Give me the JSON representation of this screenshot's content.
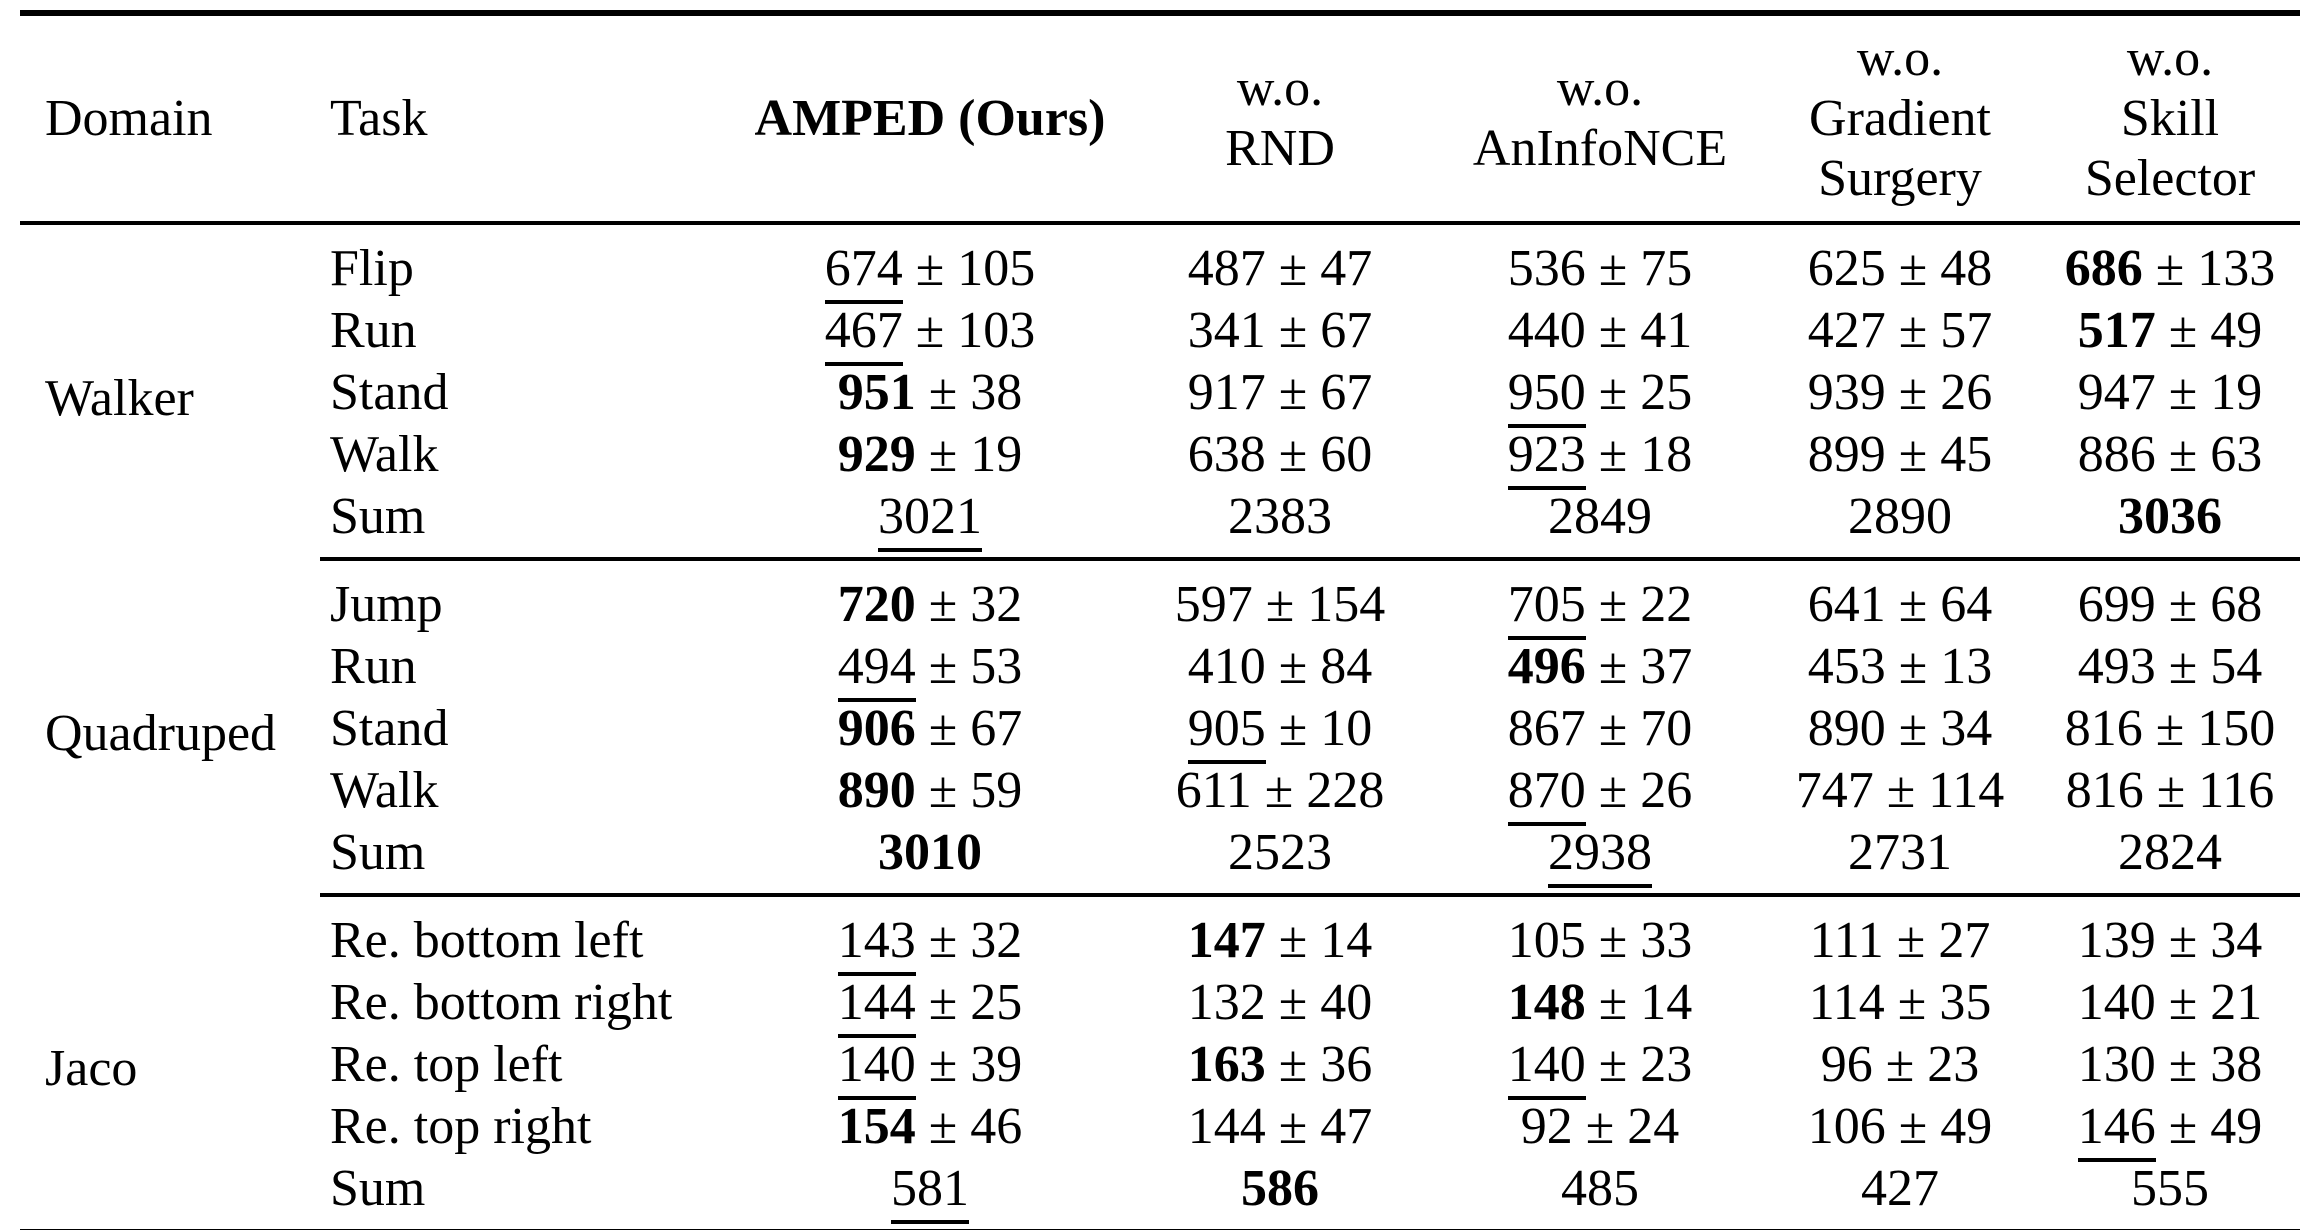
{
  "pm_sign": "±",
  "header": {
    "domain": "Domain",
    "task": "Task",
    "amped": "AMPED (Ours)",
    "wo_rnd": [
      "w.o.",
      "RND"
    ],
    "wo_aninfonce": [
      "w.o.",
      "AnInfoNCE"
    ],
    "wo_gradient": [
      "w.o.",
      "Gradient",
      "Surgery"
    ],
    "wo_skill": [
      "w.o.",
      "Skill",
      "Selector"
    ]
  },
  "groups": [
    {
      "domain": "Walker",
      "rows": [
        {
          "task": "Flip",
          "cells": [
            {
              "mean": "674",
              "std": "105",
              "emph": "underline"
            },
            {
              "mean": "487",
              "std": "47",
              "emph": "none"
            },
            {
              "mean": "536",
              "std": "75",
              "emph": "none"
            },
            {
              "mean": "625",
              "std": "48",
              "emph": "none"
            },
            {
              "mean": "686",
              "std": "133",
              "emph": "bold"
            }
          ]
        },
        {
          "task": "Run",
          "cells": [
            {
              "mean": "467",
              "std": "103",
              "emph": "underline"
            },
            {
              "mean": "341",
              "std": "67",
              "emph": "none"
            },
            {
              "mean": "440",
              "std": "41",
              "emph": "none"
            },
            {
              "mean": "427",
              "std": "57",
              "emph": "none"
            },
            {
              "mean": "517",
              "std": "49",
              "emph": "bold"
            }
          ]
        },
        {
          "task": "Stand",
          "cells": [
            {
              "mean": "951",
              "std": "38",
              "emph": "bold"
            },
            {
              "mean": "917",
              "std": "67",
              "emph": "none"
            },
            {
              "mean": "950",
              "std": "25",
              "emph": "underline"
            },
            {
              "mean": "939",
              "std": "26",
              "emph": "none"
            },
            {
              "mean": "947",
              "std": "19",
              "emph": "none"
            }
          ]
        },
        {
          "task": "Walk",
          "cells": [
            {
              "mean": "929",
              "std": "19",
              "emph": "bold"
            },
            {
              "mean": "638",
              "std": "60",
              "emph": "none"
            },
            {
              "mean": "923",
              "std": "18",
              "emph": "underline"
            },
            {
              "mean": "899",
              "std": "45",
              "emph": "none"
            },
            {
              "mean": "886",
              "std": "63",
              "emph": "none"
            }
          ]
        },
        {
          "task": "Sum",
          "cells": [
            {
              "mean": "3021",
              "emph": "underline"
            },
            {
              "mean": "2383",
              "emph": "none"
            },
            {
              "mean": "2849",
              "emph": "none"
            },
            {
              "mean": "2890",
              "emph": "none"
            },
            {
              "mean": "3036",
              "emph": "bold"
            }
          ]
        }
      ]
    },
    {
      "domain": "Quadruped",
      "rows": [
        {
          "task": "Jump",
          "cells": [
            {
              "mean": "720",
              "std": "32",
              "emph": "bold"
            },
            {
              "mean": "597",
              "std": "154",
              "emph": "none"
            },
            {
              "mean": "705",
              "std": "22",
              "emph": "underline"
            },
            {
              "mean": "641",
              "std": "64",
              "emph": "none"
            },
            {
              "mean": "699",
              "std": "68",
              "emph": "none"
            }
          ]
        },
        {
          "task": "Run",
          "cells": [
            {
              "mean": "494",
              "std": "53",
              "emph": "underline"
            },
            {
              "mean": "410",
              "std": "84",
              "emph": "none"
            },
            {
              "mean": "496",
              "std": "37",
              "emph": "bold"
            },
            {
              "mean": "453",
              "std": "13",
              "emph": "none"
            },
            {
              "mean": "493",
              "std": "54",
              "emph": "none"
            }
          ]
        },
        {
          "task": "Stand",
          "cells": [
            {
              "mean": "906",
              "std": "67",
              "emph": "bold"
            },
            {
              "mean": "905",
              "std": "10",
              "emph": "underline"
            },
            {
              "mean": "867",
              "std": "70",
              "emph": "none"
            },
            {
              "mean": "890",
              "std": "34",
              "emph": "none"
            },
            {
              "mean": "816",
              "std": "150",
              "emph": "none"
            }
          ]
        },
        {
          "task": "Walk",
          "cells": [
            {
              "mean": "890",
              "std": "59",
              "emph": "bold"
            },
            {
              "mean": "611",
              "std": "228",
              "emph": "none"
            },
            {
              "mean": "870",
              "std": "26",
              "emph": "underline"
            },
            {
              "mean": "747",
              "std": "114",
              "emph": "none"
            },
            {
              "mean": "816",
              "std": "116",
              "emph": "none"
            }
          ]
        },
        {
          "task": "Sum",
          "cells": [
            {
              "mean": "3010",
              "emph": "bold"
            },
            {
              "mean": "2523",
              "emph": "none"
            },
            {
              "mean": "2938",
              "emph": "underline"
            },
            {
              "mean": "2731",
              "emph": "none"
            },
            {
              "mean": "2824",
              "emph": "none"
            }
          ]
        }
      ]
    },
    {
      "domain": "Jaco",
      "rows": [
        {
          "task": "Re. bottom left",
          "cells": [
            {
              "mean": "143",
              "std": "32",
              "emph": "underline"
            },
            {
              "mean": "147",
              "std": "14",
              "emph": "bold"
            },
            {
              "mean": "105",
              "std": "33",
              "emph": "none"
            },
            {
              "mean": "111",
              "std": "27",
              "emph": "none"
            },
            {
              "mean": "139",
              "std": "34",
              "emph": "none"
            }
          ]
        },
        {
          "task": "Re. bottom right",
          "cells": [
            {
              "mean": "144",
              "std": "25",
              "emph": "underline"
            },
            {
              "mean": "132",
              "std": "40",
              "emph": "none"
            },
            {
              "mean": "148",
              "std": "14",
              "emph": "bold"
            },
            {
              "mean": "114",
              "std": "35",
              "emph": "none"
            },
            {
              "mean": "140",
              "std": "21",
              "emph": "none"
            }
          ]
        },
        {
          "task": "Re. top left",
          "cells": [
            {
              "mean": "140",
              "std": "39",
              "emph": "underline"
            },
            {
              "mean": "163",
              "std": "36",
              "emph": "bold"
            },
            {
              "mean": "140",
              "std": "23",
              "emph": "underline"
            },
            {
              "mean": "96",
              "std": "23",
              "emph": "none"
            },
            {
              "mean": "130",
              "std": "38",
              "emph": "none"
            }
          ]
        },
        {
          "task": "Re. top right",
          "cells": [
            {
              "mean": "154",
              "std": "46",
              "emph": "bold"
            },
            {
              "mean": "144",
              "std": "47",
              "emph": "none"
            },
            {
              "mean": "92",
              "std": "24",
              "emph": "none"
            },
            {
              "mean": "106",
              "std": "49",
              "emph": "none"
            },
            {
              "mean": "146",
              "std": "49",
              "emph": "underline"
            }
          ]
        },
        {
          "task": "Sum",
          "cells": [
            {
              "mean": "581",
              "emph": "underline"
            },
            {
              "mean": "586",
              "emph": "bold"
            },
            {
              "mean": "485",
              "emph": "none"
            },
            {
              "mean": "427",
              "emph": "none"
            },
            {
              "mean": "555",
              "emph": "none"
            }
          ]
        }
      ]
    }
  ]
}
